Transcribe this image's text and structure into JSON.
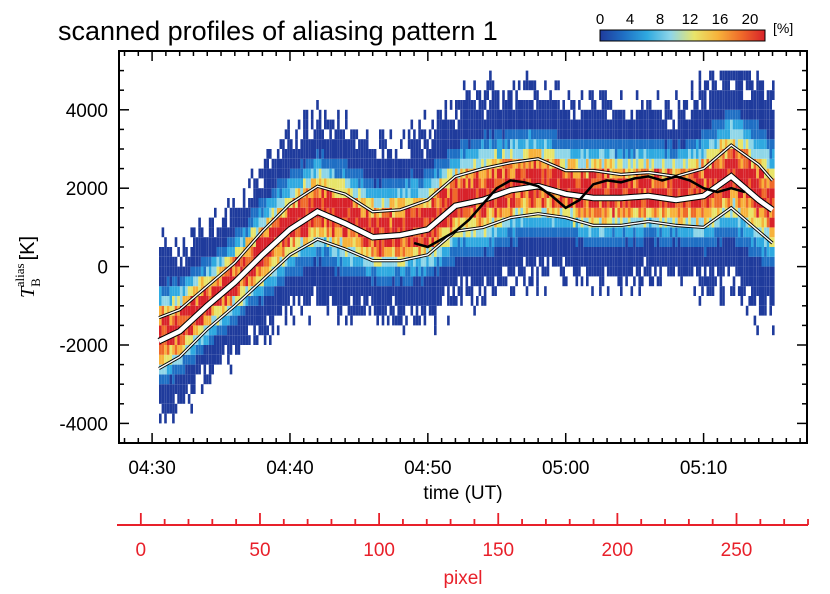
{
  "chart_data": {
    "type": "heatmap",
    "title": "scanned profiles of aliasing pattern 1",
    "xlabel": "time (UT)",
    "ylabel_main": "T",
    "ylabel_sub": "B",
    "ylabel_sup": "alias",
    "ylabel_unit": "[K]",
    "x_ticks": [
      "04:30",
      "04:40",
      "04:50",
      "05:00",
      "05:10"
    ],
    "x_tick_minutes": [
      0,
      10,
      20,
      30,
      40
    ],
    "xlim_minutes": [
      -2.4,
      47.5
    ],
    "data_x_range_minutes": [
      0.5,
      45
    ],
    "y_ticks": [
      4000,
      2000,
      0,
      -2000,
      -4000
    ],
    "y_tick_labels": [
      "4000",
      "2000",
      "0",
      "-2000",
      "-4000"
    ],
    "ylim": [
      -4500,
      5500
    ],
    "colorbar": {
      "ticks": [
        "0",
        "4",
        "8",
        "12",
        "16",
        "20"
      ],
      "unit": "[%]",
      "range": [
        0,
        22
      ],
      "colors": [
        "#1f3b9c",
        "#1f6fc4",
        "#2fa9e0",
        "#8fd6e8",
        "#e8e46a",
        "#f7b23b",
        "#ef6a2a",
        "#d8222a"
      ]
    },
    "median_curve": {
      "minutes": [
        0.5,
        2,
        4,
        6,
        8,
        10,
        12,
        14,
        16,
        18,
        20,
        22,
        24,
        26,
        28,
        30,
        32,
        34,
        36,
        38,
        40,
        42,
        44,
        45
      ],
      "values": [
        -1900,
        -1650,
        -1000,
        -400,
        300,
        950,
        1400,
        1100,
        750,
        800,
        950,
        1550,
        1700,
        1950,
        2050,
        1850,
        1750,
        1750,
        1800,
        1700,
        1800,
        2300,
        1700,
        1450
      ]
    },
    "upper_envelope": {
      "minutes": [
        0.5,
        2,
        4,
        6,
        8,
        10,
        12,
        14,
        16,
        18,
        20,
        22,
        24,
        26,
        28,
        30,
        32,
        34,
        36,
        38,
        40,
        42,
        44,
        45
      ],
      "values": [
        -1300,
        -1100,
        -500,
        100,
        900,
        1600,
        2050,
        1850,
        1400,
        1450,
        1700,
        2300,
        2500,
        2650,
        2750,
        2450,
        2450,
        2350,
        2400,
        2300,
        2500,
        3100,
        2600,
        2200
      ]
    },
    "lower_envelope": {
      "minutes": [
        0.5,
        2,
        4,
        6,
        8,
        10,
        12,
        14,
        16,
        18,
        20,
        22,
        24,
        26,
        28,
        30,
        32,
        34,
        36,
        38,
        40,
        42,
        44,
        45
      ],
      "values": [
        -2600,
        -2300,
        -1600,
        -1000,
        -350,
        300,
        700,
        450,
        150,
        150,
        300,
        900,
        1000,
        1250,
        1350,
        1250,
        1050,
        1050,
        1150,
        1050,
        1000,
        1500,
        900,
        600
      ]
    },
    "black_curve": {
      "minutes": [
        19,
        20,
        21,
        22,
        23,
        24,
        25,
        26,
        27,
        28,
        29,
        30,
        31,
        32,
        33,
        34,
        35,
        36,
        37,
        38,
        39,
        40,
        41,
        42,
        43
      ],
      "values": [
        600,
        500,
        700,
        900,
        1200,
        1600,
        2000,
        2200,
        2150,
        2050,
        1800,
        1500,
        1700,
        2100,
        2200,
        2150,
        2250,
        2300,
        2200,
        2300,
        2200,
        2000,
        1900,
        2000,
        1900
      ]
    },
    "pixel_axis": {
      "label": "pixel",
      "ticks": [
        "0",
        "50",
        "100",
        "150",
        "200",
        "250"
      ],
      "values": [
        0,
        50,
        100,
        150,
        200,
        250
      ],
      "minor_step": 10,
      "range": [
        -10,
        280
      ],
      "color": "#e8202a"
    }
  }
}
